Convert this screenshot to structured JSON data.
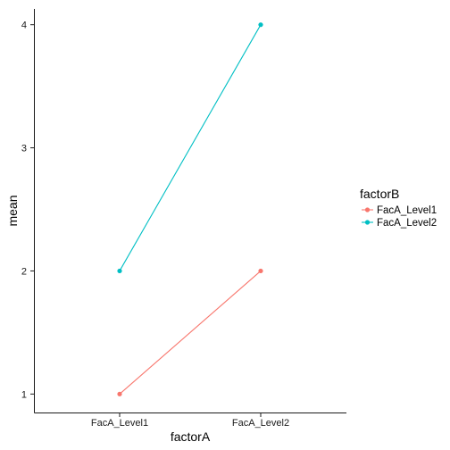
{
  "chart_data": {
    "type": "line",
    "title": "",
    "xlabel": "factorA",
    "ylabel": "mean",
    "categories": [
      "FacA_Level1",
      "FacA_Level2"
    ],
    "ylim": [
      0.85,
      4.15
    ],
    "yticks": [
      1,
      2,
      3,
      4
    ],
    "grid": false,
    "legend": {
      "title": "factorB",
      "placement": "right"
    },
    "series": [
      {
        "name": "FacA_Level1",
        "color": "#F8766D",
        "values": [
          1,
          2
        ]
      },
      {
        "name": "FacA_Level2",
        "color": "#00BFC4",
        "values": [
          2,
          4
        ]
      }
    ]
  }
}
